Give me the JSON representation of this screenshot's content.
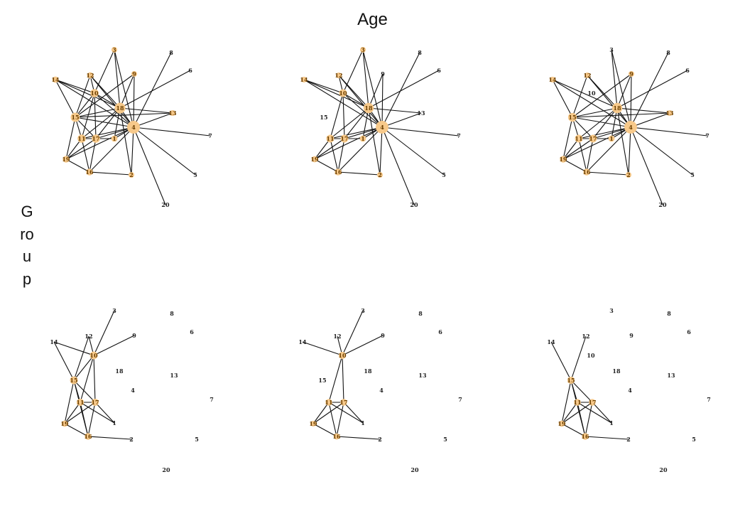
{
  "title": "Age",
  "row_label": "Group",
  "panels": [
    {
      "nodes": [
        "1",
        "2",
        "3",
        "4",
        "5",
        "6",
        "7",
        "8",
        "9",
        "10",
        "11",
        "12",
        "13",
        "14",
        "15",
        "16",
        "17",
        "18",
        "19",
        "20"
      ]
    },
    {
      "nodes": [
        "1",
        "2",
        "3",
        "4",
        "5",
        "6",
        "7",
        "8",
        "9",
        "10",
        "11",
        "12",
        "13",
        "14",
        "15",
        "16",
        "17",
        "18",
        "19",
        "20"
      ]
    },
    {
      "nodes": [
        "1",
        "2",
        "3",
        "4",
        "5",
        "6",
        "7",
        "8",
        "9",
        "10",
        "11",
        "12",
        "13",
        "14",
        "15",
        "16",
        "17",
        "18",
        "19",
        "20"
      ]
    },
    {
      "nodes": [
        "1",
        "2",
        "3",
        "4",
        "5",
        "6",
        "7",
        "8",
        "9",
        "10",
        "11",
        "12",
        "13",
        "14",
        "15",
        "16",
        "17",
        "18",
        "19",
        "20"
      ]
    },
    {
      "nodes": [
        "1",
        "2",
        "3",
        "4",
        "5",
        "6",
        "7",
        "8",
        "9",
        "10",
        "11",
        "12",
        "13",
        "14",
        "15",
        "16",
        "17",
        "18",
        "19",
        "20"
      ]
    },
    {
      "nodes": [
        "1",
        "2",
        "3",
        "4",
        "5",
        "6",
        "7",
        "8",
        "9",
        "10",
        "11",
        "12",
        "13",
        "14",
        "15",
        "16",
        "17",
        "18",
        "19",
        "20"
      ]
    }
  ]
}
